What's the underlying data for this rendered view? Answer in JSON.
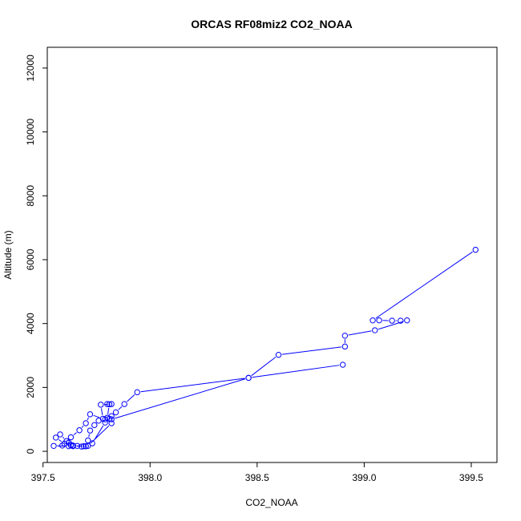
{
  "chart_data": {
    "type": "line",
    "title": "ORCAS RF08miz2 CO2_NOAA",
    "xlabel": "CO2_NOAA",
    "ylabel": "Altitude (m)",
    "xlim": [
      397.52,
      399.62
    ],
    "ylim": [
      -350,
      12650
    ],
    "x_ticks": [
      397.5,
      398.0,
      398.5,
      399.0,
      399.5
    ],
    "x_tick_labels": [
      "397.5",
      "398.0",
      "398.5",
      "399.0",
      "399.5"
    ],
    "y_ticks": [
      0,
      2000,
      4000,
      6000,
      8000,
      10000,
      12000
    ],
    "y_tick_labels": [
      "0",
      "2000",
      "4000",
      "6000",
      "8000",
      "10000",
      "12000"
    ],
    "grid": false,
    "color": "#0000ff",
    "series": [
      {
        "x": [
          399.52,
          399.04,
          399.07,
          399.13,
          399.17,
          399.2,
          399.05,
          398.91,
          398.91,
          398.6,
          398.46,
          397.94,
          397.88,
          397.84,
          397.82,
          397.8,
          397.81,
          397.8,
          397.82,
          397.77,
          397.78,
          397.72,
          397.7,
          397.67,
          397.63,
          397.6,
          397.56,
          397.58,
          397.61,
          397.63,
          397.64,
          397.68,
          397.7,
          397.71,
          397.72,
          397.74,
          397.76,
          397.79,
          397.81,
          397.82,
          397.71,
          397.69,
          397.66,
          397.63,
          397.62,
          397.55,
          397.59,
          397.62,
          397.64,
          397.7,
          397.73,
          397.79,
          397.82,
          398.46,
          398.9
        ],
        "y": [
          6310,
          4100,
          4100,
          4090,
          4090,
          4100,
          3790,
          3620,
          3280,
          3020,
          2300,
          1850,
          1480,
          1220,
          1100,
          1050,
          1470,
          1480,
          1480,
          1460,
          1020,
          1160,
          880,
          660,
          440,
          240,
          430,
          530,
          320,
          190,
          160,
          150,
          160,
          340,
          650,
          820,
          960,
          1000,
          1020,
          880,
          170,
          160,
          170,
          200,
          160,
          170,
          180,
          270,
          180,
          160,
          250,
          900,
          1000,
          2300,
          2710
        ]
      }
    ]
  }
}
